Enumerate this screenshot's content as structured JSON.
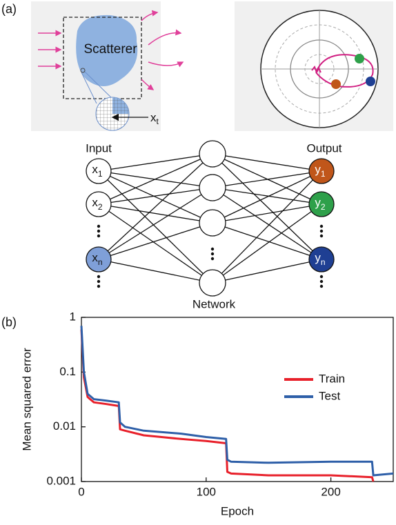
{
  "panel_labels": [
    "(a)",
    "(b)"
  ],
  "diagram": {
    "scatterer": "Scatterer",
    "pixel": {
      "base": "x",
      "sub": "t"
    },
    "input_title": "Input",
    "output_title": "Output",
    "network_title": "Network",
    "inputs": [
      {
        "base": "x",
        "sub": "1"
      },
      {
        "base": "x",
        "sub": "2"
      },
      {
        "base": "x",
        "sub": "n"
      }
    ],
    "outputs": [
      {
        "base": "y",
        "sub": "1"
      },
      {
        "base": "y",
        "sub": "2"
      },
      {
        "base": "y",
        "sub": "n"
      }
    ]
  },
  "chart_data": {
    "type": "line",
    "xlabel": "Epoch",
    "ylabel": "Mean squared error",
    "yscale": "log",
    "xlim": [
      0,
      250
    ],
    "xticks": [
      0,
      100,
      200
    ],
    "ylim": [
      0.001,
      1
    ],
    "yticks": [
      0.001,
      0.01,
      0.1,
      1
    ],
    "legend": "upper right",
    "x": [
      0,
      2,
      5,
      10,
      20,
      30,
      31,
      35,
      50,
      80,
      100,
      116,
      117,
      120,
      150,
      200,
      233,
      234,
      250
    ],
    "series": [
      {
        "name": "Train",
        "color": "#e8202a",
        "values": [
          0.6,
          0.08,
          0.035,
          0.028,
          0.026,
          0.024,
          0.009,
          0.0085,
          0.007,
          0.006,
          0.0055,
          0.005,
          0.0015,
          0.0014,
          0.0013,
          0.0013,
          0.0012,
          0.001,
          null
        ]
      },
      {
        "name": "Test",
        "color": "#2e5fa8",
        "values": [
          0.7,
          0.1,
          0.04,
          0.032,
          0.03,
          0.028,
          0.012,
          0.01,
          0.0085,
          0.0075,
          0.0065,
          0.006,
          0.0025,
          0.0023,
          0.0022,
          0.0023,
          0.0023,
          0.0013,
          0.0014
        ]
      }
    ]
  }
}
